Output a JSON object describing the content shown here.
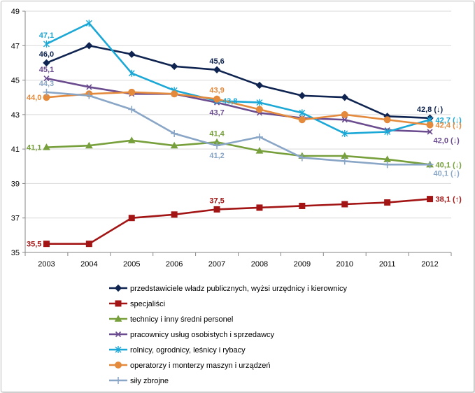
{
  "chart_data": {
    "type": "line",
    "title": "",
    "xlabel": "",
    "ylabel": "",
    "categories": [
      "2003",
      "2004",
      "2005",
      "2006",
      "2007",
      "2008",
      "2009",
      "2010",
      "2011",
      "2012"
    ],
    "ylim": [
      35,
      49
    ],
    "yticks": [
      "35",
      "37",
      "39",
      "41",
      "43",
      "45",
      "47",
      "49"
    ],
    "grid": true,
    "legend_position": "bottom",
    "series": [
      {
        "name": "przedstawiciele władz publicznych, wyżsi urzędnicy i kierownicy",
        "color": "#0f2450",
        "marker": "diamond",
        "values": [
          46.0,
          47.0,
          46.5,
          45.8,
          45.6,
          44.7,
          44.1,
          44.0,
          42.9,
          42.8
        ]
      },
      {
        "name": "specjaliści",
        "color": "#a31515",
        "marker": "square",
        "values": [
          35.5,
          35.5,
          37.0,
          37.2,
          37.5,
          37.6,
          37.7,
          37.8,
          37.9,
          38.1
        ]
      },
      {
        "name": "technicy i inny średni personel",
        "color": "#77a03c",
        "marker": "triangle",
        "values": [
          41.1,
          41.2,
          41.5,
          41.2,
          41.4,
          40.9,
          40.6,
          40.6,
          40.4,
          40.1
        ]
      },
      {
        "name": "pracownicy usług osobistych  i sprzedawcy",
        "color": "#6b4c8f",
        "marker": "x",
        "values": [
          45.1,
          44.6,
          44.2,
          44.2,
          43.7,
          43.1,
          42.8,
          42.7,
          42.1,
          42.0
        ]
      },
      {
        "name": "rolnicy, ogrodnicy, leśnicy i rybacy",
        "color": "#1ba8d6",
        "marker": "star",
        "values": [
          47.1,
          48.3,
          45.4,
          44.4,
          43.8,
          43.7,
          43.1,
          41.9,
          42.0,
          42.7
        ]
      },
      {
        "name": "operatorzy i monterzy maszyn  i urządzeń",
        "color": "#e38a3d",
        "marker": "circle",
        "values": [
          44.0,
          44.2,
          44.3,
          44.2,
          43.9,
          43.3,
          42.7,
          43.0,
          42.7,
          42.4
        ]
      },
      {
        "name": "siły zbrojne",
        "color": "#8aa6c7",
        "marker": "plus",
        "values": [
          44.3,
          44.1,
          43.3,
          41.9,
          41.2,
          41.7,
          40.5,
          40.3,
          40.1,
          40.1
        ]
      }
    ],
    "annotations": [
      {
        "text": "46,0",
        "series": 0,
        "index": 0,
        "pos": "above",
        "color": "#0f2450"
      },
      {
        "text": "45,6",
        "series": 0,
        "index": 4,
        "pos": "above",
        "color": "#0f2450"
      },
      {
        "text": "42,8 (↓)",
        "series": 0,
        "index": 9,
        "pos": "above",
        "color": "#0f2450"
      },
      {
        "text": "35,5",
        "series": 1,
        "index": 0,
        "pos": "left",
        "color": "#a31515"
      },
      {
        "text": "37,5",
        "series": 1,
        "index": 4,
        "pos": "above",
        "color": "#a31515"
      },
      {
        "text": "38,1 (↑)",
        "series": 1,
        "index": 9,
        "pos": "right",
        "color": "#a31515"
      },
      {
        "text": "41,1",
        "series": 2,
        "index": 0,
        "pos": "left",
        "color": "#77a03c"
      },
      {
        "text": "41,4",
        "series": 2,
        "index": 4,
        "pos": "above",
        "color": "#77a03c"
      },
      {
        "text": "40,1 (↓)",
        "series": 2,
        "index": 9,
        "pos": "right",
        "color": "#77a03c"
      },
      {
        "text": "45,1",
        "series": 3,
        "index": 0,
        "pos": "above",
        "color": "#6b4c8f"
      },
      {
        "text": "43,7",
        "series": 3,
        "index": 4,
        "pos": "below",
        "color": "#6b4c8f"
      },
      {
        "text": "42,0 (↓)",
        "series": 3,
        "index": 9,
        "pos": "below-right",
        "color": "#6b4c8f"
      },
      {
        "text": "47,1",
        "series": 4,
        "index": 0,
        "pos": "above",
        "color": "#1ba8d6"
      },
      {
        "text": "43,8",
        "series": 4,
        "index": 4,
        "pos": "right",
        "color": "#1ba8d6"
      },
      {
        "text": "42,7 (↓)",
        "series": 4,
        "index": 9,
        "pos": "right",
        "color": "#1ba8d6"
      },
      {
        "text": "44,0",
        "series": 5,
        "index": 0,
        "pos": "left",
        "color": "#e38a3d"
      },
      {
        "text": "43,9",
        "series": 5,
        "index": 4,
        "pos": "above",
        "color": "#e38a3d"
      },
      {
        "text": "42,4 (↓)",
        "series": 5,
        "index": 9,
        "pos": "right",
        "color": "#e38a3d"
      },
      {
        "text": "44,3",
        "series": 6,
        "index": 0,
        "pos": "above",
        "color": "#8aa6c7"
      },
      {
        "text": "41,2",
        "series": 6,
        "index": 4,
        "pos": "below",
        "color": "#8aa6c7"
      },
      {
        "text": "40,1 (↓)",
        "series": 6,
        "index": 9,
        "pos": "below-right",
        "color": "#8aa6c7"
      }
    ]
  }
}
